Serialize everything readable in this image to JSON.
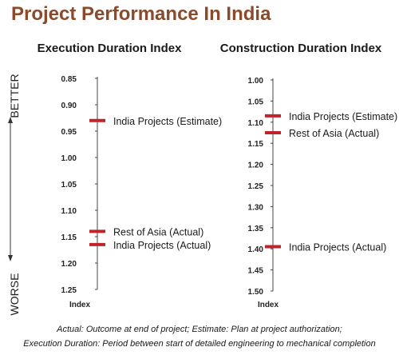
{
  "title": "Project Performance In India",
  "side_labels": {
    "better": "BETTER",
    "worse": "WORSE"
  },
  "footnotes": {
    "line1": "Actual: Outcome at end of project; Estimate: Plan at project authorization;",
    "line2": "Execution Duration: Period between start of detailed engineering to mechanical completion"
  },
  "colors": {
    "title": "#8B4A2B",
    "marker": "#C0242A",
    "axis": "#444444"
  },
  "chart_data": [
    {
      "type": "scatter",
      "title": "Execution Duration Index",
      "xlabel": "Index",
      "ylim": [
        0.85,
        1.25
      ],
      "y_inverted": true,
      "yticks": [
        "0.85",
        "0.90",
        "0.95",
        "1.00",
        "1.05",
        "1.10",
        "1.15",
        "1.20",
        "1.25"
      ],
      "points": [
        {
          "label": "India Projects (Estimate)",
          "value": 0.93
        },
        {
          "label": "Rest of Asia (Actual)",
          "value": 1.14
        },
        {
          "label": "India Projects (Actual)",
          "value": 1.165
        }
      ]
    },
    {
      "type": "scatter",
      "title": "Construction Duration Index",
      "xlabel": "Index",
      "ylim": [
        1.0,
        1.5
      ],
      "y_inverted": true,
      "yticks": [
        "1.00",
        "1.05",
        "1.10",
        "1.15",
        "1.20",
        "1.25",
        "1.30",
        "1.35",
        "1.40",
        "1.45",
        "1.50"
      ],
      "points": [
        {
          "label": "India Projects (Estimate)",
          "value": 1.085
        },
        {
          "label": "Rest of Asia (Actual)",
          "value": 1.125
        },
        {
          "label": "India Projects (Actual)",
          "value": 1.395
        }
      ]
    }
  ]
}
